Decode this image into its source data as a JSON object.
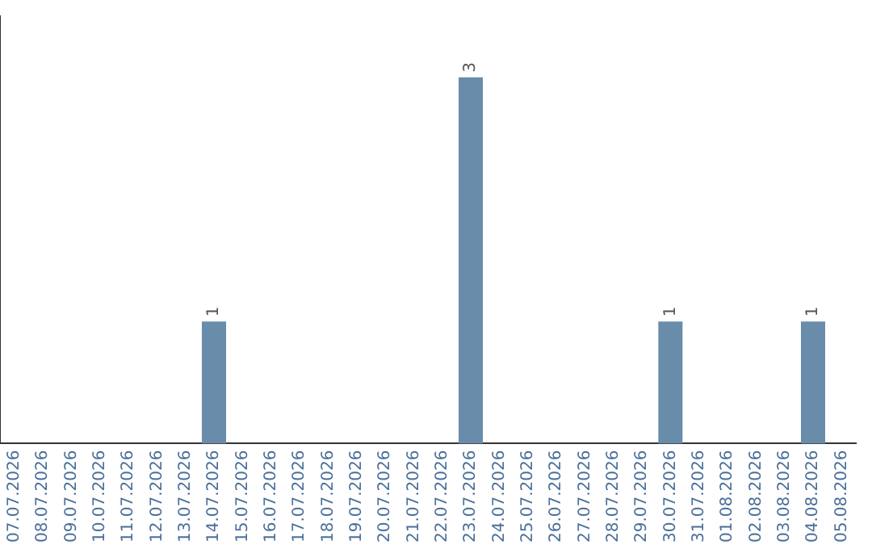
{
  "chart_data": {
    "type": "bar",
    "categories": [
      "07.07.2026",
      "08.07.2026",
      "09.07.2026",
      "10.07.2026",
      "11.07.2026",
      "12.07.2026",
      "13.07.2026",
      "14.07.2026",
      "15.07.2026",
      "16.07.2026",
      "17.07.2026",
      "18.07.2026",
      "19.07.2026",
      "20.07.2026",
      "21.07.2026",
      "22.07.2026",
      "23.07.2026",
      "24.07.2026",
      "25.07.2026",
      "26.07.2026",
      "27.07.2026",
      "28.07.2026",
      "29.07.2026",
      "30.07.2026",
      "31.07.2026",
      "01.08.2026",
      "02.08.2026",
      "03.08.2026",
      "04.08.2026",
      "05.08.2026"
    ],
    "values": [
      0,
      0,
      0,
      0,
      0,
      0,
      0,
      1,
      0,
      0,
      0,
      0,
      0,
      0,
      0,
      0,
      3,
      0,
      0,
      0,
      0,
      0,
      0,
      1,
      0,
      0,
      0,
      0,
      1,
      0
    ],
    "value_labels": [
      null,
      null,
      null,
      null,
      null,
      null,
      null,
      "1",
      null,
      null,
      null,
      null,
      null,
      null,
      null,
      null,
      "3",
      null,
      null,
      null,
      null,
      null,
      null,
      "1",
      null,
      null,
      null,
      null,
      "1",
      null
    ],
    "color": "#6a8cab",
    "grid": false,
    "legend": false,
    "tick_labels": "x"
  }
}
